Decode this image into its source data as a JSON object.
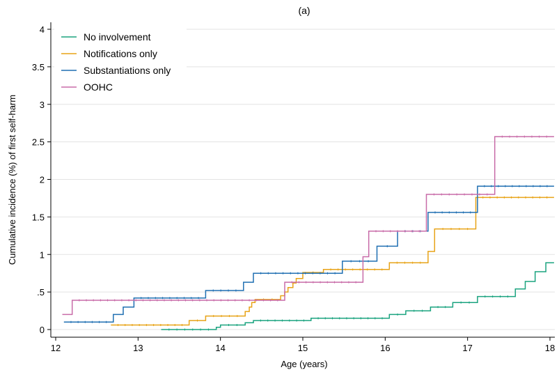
{
  "chart_data": {
    "type": "line",
    "step": true,
    "title": "(a)",
    "xlabel": "Age (years)",
    "ylabel": "Cumulative incidence (%) of first self-harm",
    "xlim": [
      12,
      18.05
    ],
    "ylim": [
      0,
      4
    ],
    "x_ticks": [
      12,
      13,
      14,
      15,
      16,
      17,
      18
    ],
    "x_tick_labels": [
      "12",
      "13",
      "14",
      "15",
      "16",
      "17",
      "18"
    ],
    "y_ticks": [
      0,
      0.5,
      1,
      1.5,
      2,
      2.5,
      3,
      3.5,
      4
    ],
    "y_tick_labels": [
      "0",
      ".5",
      "1",
      "1.5",
      "2",
      "2.5",
      "3",
      "3.5",
      "4"
    ],
    "grid": true,
    "legend_position": "top-left",
    "series": [
      {
        "name": "No involvement",
        "color": "#1aa37f",
        "x": [
          13.28,
          13.95,
          14.0,
          14.3,
          14.4,
          15.1,
          16.05,
          16.25,
          16.55,
          16.82,
          17.12,
          17.58,
          17.7,
          17.82,
          17.88,
          17.95,
          18.05
        ],
        "y": [
          0.0,
          0.03,
          0.06,
          0.09,
          0.12,
          0.15,
          0.2,
          0.25,
          0.3,
          0.36,
          0.44,
          0.54,
          0.64,
          0.77,
          0.77,
          0.89,
          0.89
        ]
      },
      {
        "name": "Notifications only",
        "color": "#e8a317",
        "x": [
          12.67,
          13.62,
          13.82,
          14.3,
          14.35,
          14.38,
          14.42,
          14.73,
          14.78,
          14.82,
          14.88,
          14.92,
          15.0,
          15.25,
          16.05,
          16.52,
          16.6,
          17.1,
          18.05
        ],
        "y": [
          0.06,
          0.12,
          0.18,
          0.24,
          0.3,
          0.36,
          0.4,
          0.45,
          0.5,
          0.56,
          0.62,
          0.68,
          0.76,
          0.8,
          0.89,
          1.04,
          1.34,
          1.76,
          1.76
        ]
      },
      {
        "name": "Substantiations only",
        "color": "#1f6fb2",
        "x": [
          12.1,
          12.7,
          12.82,
          12.95,
          13.82,
          14.28,
          14.4,
          15.48,
          15.9,
          16.15,
          16.52,
          17.12,
          18.05
        ],
        "y": [
          0.1,
          0.2,
          0.3,
          0.42,
          0.52,
          0.63,
          0.75,
          0.91,
          1.11,
          1.31,
          1.56,
          1.91,
          1.91
        ]
      },
      {
        "name": "OOHC",
        "color": "#c86ba8",
        "x": [
          12.08,
          12.2,
          14.78,
          15.73,
          15.8,
          16.5,
          17.33,
          18.05
        ],
        "y": [
          0.2,
          0.39,
          0.63,
          0.97,
          1.31,
          1.8,
          2.57,
          2.57
        ]
      }
    ]
  }
}
